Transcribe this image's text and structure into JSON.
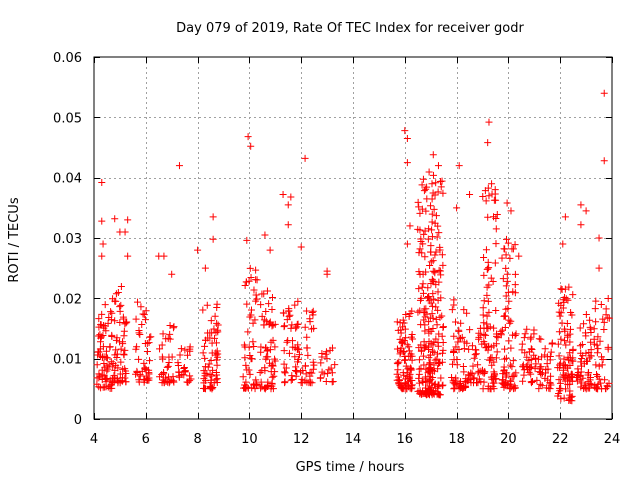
{
  "chart_data": {
    "type": "scatter",
    "title": "Day 079 of 2019, Rate Of TEC Index for receiver godr",
    "xlabel": "GPS time / hours",
    "ylabel": "ROTI / TECUs",
    "xlim": [
      4,
      24
    ],
    "ylim": [
      0,
      0.06
    ],
    "xticks": [
      4,
      6,
      8,
      10,
      12,
      14,
      16,
      18,
      20,
      22,
      24
    ],
    "yticks": [
      0,
      0.01,
      0.02,
      0.03,
      0.04,
      0.05,
      0.06
    ],
    "ytick_labels": [
      "0",
      "0.01",
      "0.02",
      "0.03",
      "0.04",
      "0.05",
      "0.06"
    ],
    "grid": true,
    "marker": "+",
    "color": "#ff0000",
    "clusters": [
      {
        "x": 4.4,
        "n": 70,
        "y_min": 0.005,
        "y_max": 0.02
      },
      {
        "x": 5.0,
        "n": 60,
        "y_min": 0.006,
        "y_max": 0.022
      },
      {
        "x": 5.9,
        "n": 45,
        "y_min": 0.006,
        "y_max": 0.02
      },
      {
        "x": 6.8,
        "n": 35,
        "y_min": 0.006,
        "y_max": 0.016
      },
      {
        "x": 7.5,
        "n": 25,
        "y_min": 0.006,
        "y_max": 0.012
      },
      {
        "x": 8.5,
        "n": 65,
        "y_min": 0.005,
        "y_max": 0.02
      },
      {
        "x": 10.0,
        "n": 50,
        "y_min": 0.005,
        "y_max": 0.025
      },
      {
        "x": 10.7,
        "n": 60,
        "y_min": 0.005,
        "y_max": 0.022
      },
      {
        "x": 11.6,
        "n": 45,
        "y_min": 0.006,
        "y_max": 0.02
      },
      {
        "x": 12.2,
        "n": 35,
        "y_min": 0.006,
        "y_max": 0.018
      },
      {
        "x": 13.0,
        "n": 20,
        "y_min": 0.006,
        "y_max": 0.014
      },
      {
        "x": 16.0,
        "n": 90,
        "y_min": 0.005,
        "y_max": 0.018
      },
      {
        "x": 16.8,
        "n": 120,
        "y_min": 0.004,
        "y_max": 0.04
      },
      {
        "x": 17.2,
        "n": 120,
        "y_min": 0.004,
        "y_max": 0.042
      },
      {
        "x": 18.1,
        "n": 55,
        "y_min": 0.005,
        "y_max": 0.02
      },
      {
        "x": 18.7,
        "n": 35,
        "y_min": 0.006,
        "y_max": 0.016
      },
      {
        "x": 19.3,
        "n": 90,
        "y_min": 0.005,
        "y_max": 0.04
      },
      {
        "x": 20.0,
        "n": 80,
        "y_min": 0.005,
        "y_max": 0.03
      },
      {
        "x": 20.8,
        "n": 40,
        "y_min": 0.006,
        "y_max": 0.016
      },
      {
        "x": 21.4,
        "n": 35,
        "y_min": 0.005,
        "y_max": 0.014
      },
      {
        "x": 22.2,
        "n": 95,
        "y_min": 0.003,
        "y_max": 0.022
      },
      {
        "x": 22.9,
        "n": 55,
        "y_min": 0.005,
        "y_max": 0.018
      },
      {
        "x": 23.6,
        "n": 45,
        "y_min": 0.005,
        "y_max": 0.02
      }
    ],
    "points": [
      [
        4.3,
        0.0392
      ],
      [
        4.3,
        0.0328
      ],
      [
        4.35,
        0.029
      ],
      [
        4.3,
        0.027
      ],
      [
        4.8,
        0.0332
      ],
      [
        5.0,
        0.031
      ],
      [
        5.3,
        0.033
      ],
      [
        5.2,
        0.031
      ],
      [
        5.3,
        0.027
      ],
      [
        6.5,
        0.027
      ],
      [
        6.7,
        0.027
      ],
      [
        7.3,
        0.042
      ],
      [
        7.0,
        0.024
      ],
      [
        8.0,
        0.028
      ],
      [
        8.6,
        0.0335
      ],
      [
        8.6,
        0.0298
      ],
      [
        8.3,
        0.025
      ],
      [
        9.95,
        0.0468
      ],
      [
        10.05,
        0.0452
      ],
      [
        9.9,
        0.0296
      ],
      [
        10.6,
        0.0305
      ],
      [
        10.8,
        0.028
      ],
      [
        11.3,
        0.0372
      ],
      [
        11.6,
        0.0368
      ],
      [
        11.5,
        0.0355
      ],
      [
        11.5,
        0.0322
      ],
      [
        12.15,
        0.0432
      ],
      [
        12.0,
        0.0285
      ],
      [
        13.0,
        0.0245
      ],
      [
        13.0,
        0.024
      ],
      [
        16.0,
        0.0478
      ],
      [
        16.1,
        0.0465
      ],
      [
        16.1,
        0.0425
      ],
      [
        16.2,
        0.032
      ],
      [
        16.1,
        0.029
      ],
      [
        17.1,
        0.0438
      ],
      [
        17.3,
        0.042
      ],
      [
        17.05,
        0.039
      ],
      [
        18.1,
        0.042
      ],
      [
        18.0,
        0.035
      ],
      [
        18.5,
        0.0372
      ],
      [
        19.25,
        0.0492
      ],
      [
        19.2,
        0.0458
      ],
      [
        19.35,
        0.039
      ],
      [
        19.25,
        0.037
      ],
      [
        19.95,
        0.0358
      ],
      [
        20.1,
        0.0345
      ],
      [
        20.4,
        0.027
      ],
      [
        22.2,
        0.0335
      ],
      [
        22.1,
        0.029
      ],
      [
        22.8,
        0.0355
      ],
      [
        23.0,
        0.0345
      ],
      [
        22.8,
        0.0322
      ],
      [
        23.5,
        0.03
      ],
      [
        23.7,
        0.054
      ],
      [
        23.7,
        0.0428
      ],
      [
        23.5,
        0.025
      ]
    ]
  }
}
